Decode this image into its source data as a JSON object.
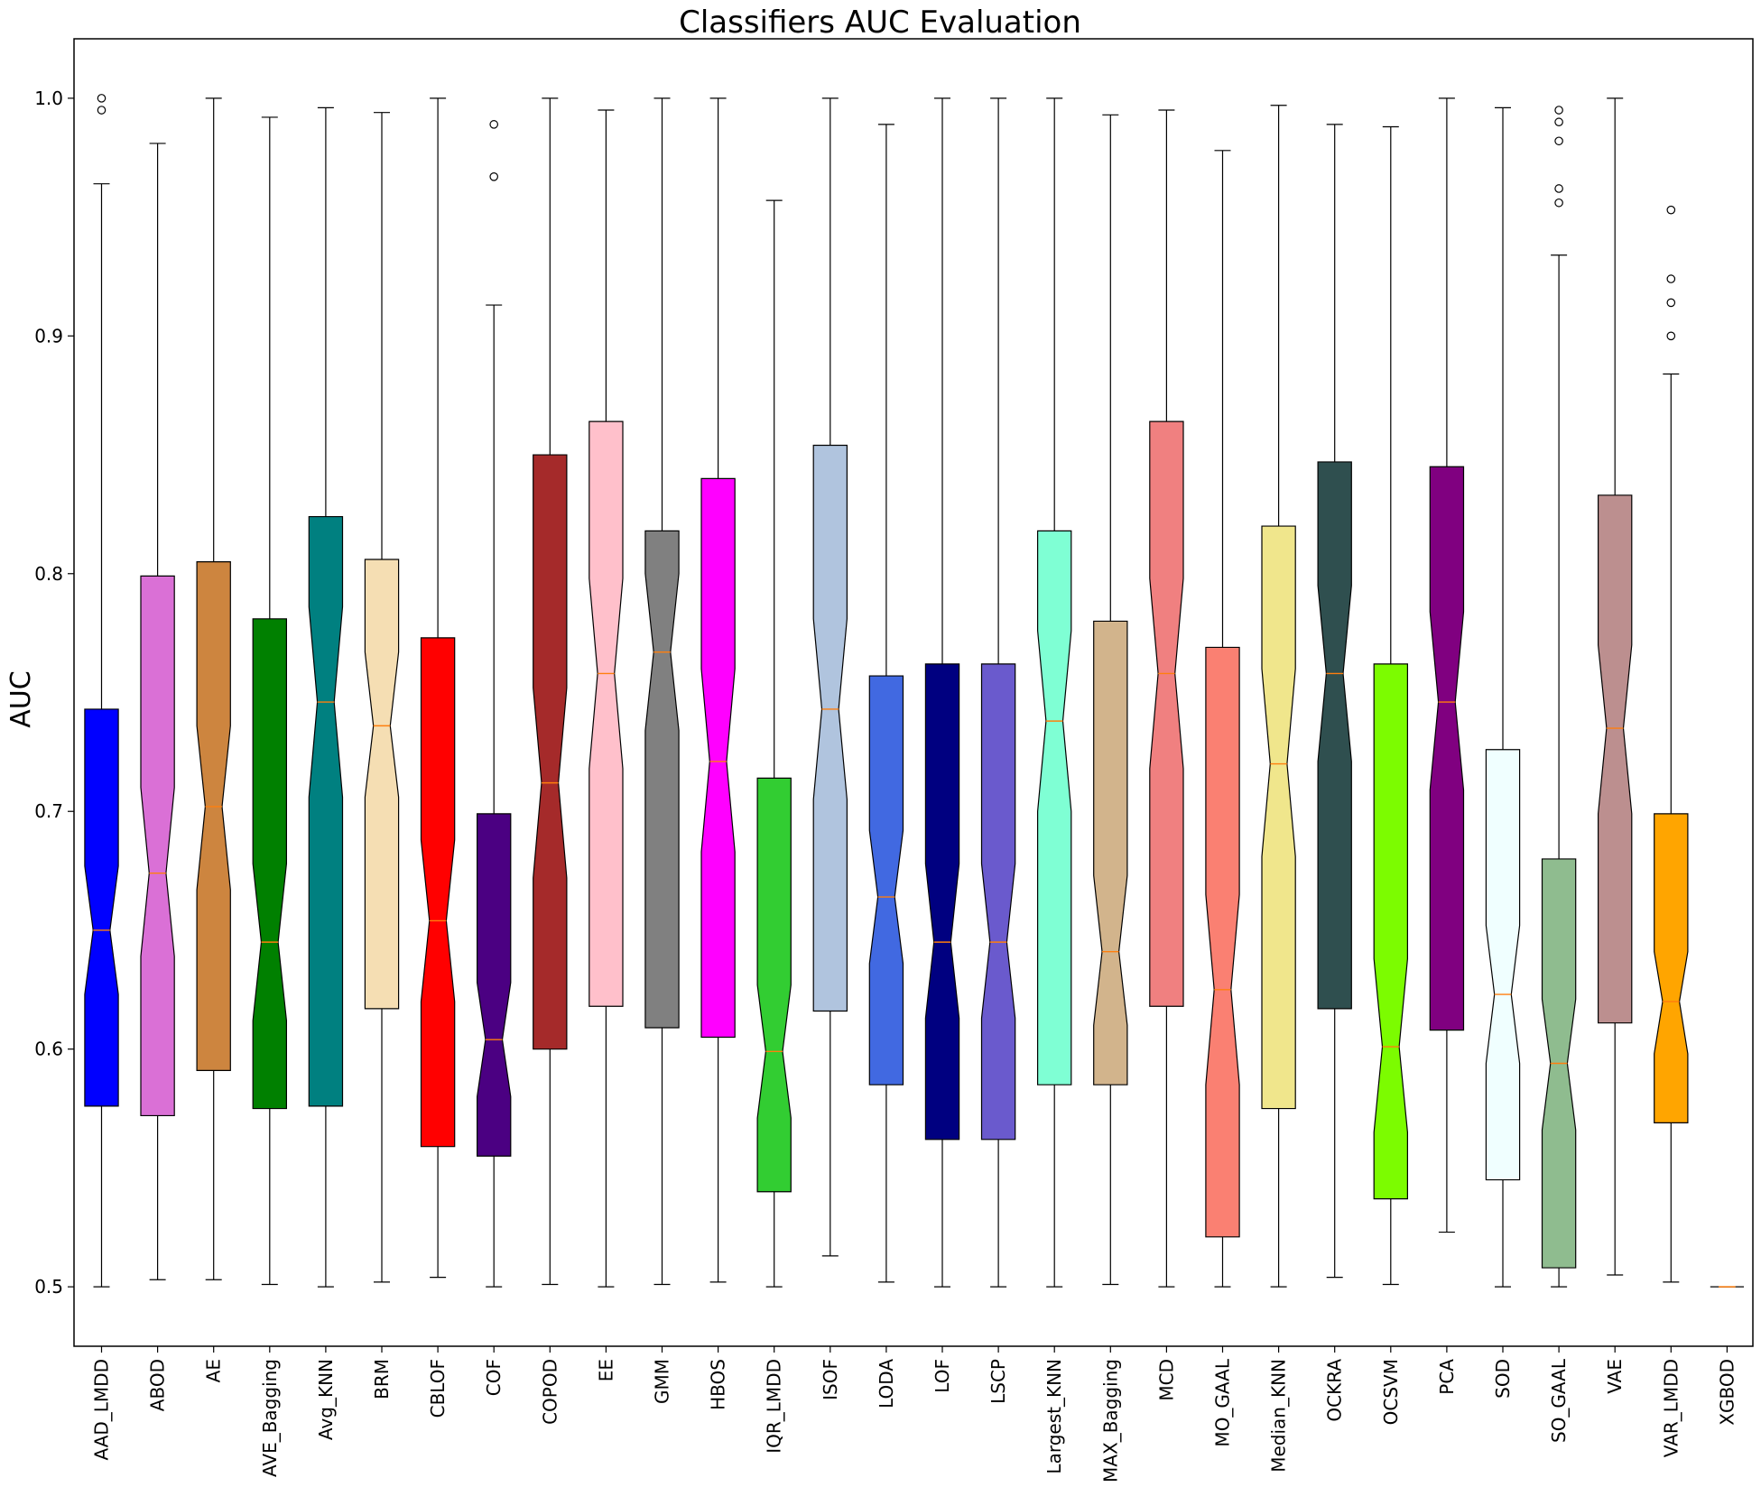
{
  "chart_data": {
    "type": "boxplot",
    "title": "Classifiers AUC Evaluation",
    "xlabel": "",
    "ylabel": "AUC",
    "ylim": [
      0.475,
      1.025
    ],
    "yticks": [
      0.5,
      0.6,
      0.7,
      0.8,
      0.9,
      1.0
    ],
    "ytick_labels": [
      "0.5",
      "0.6",
      "0.7",
      "0.8",
      "0.9",
      "1.0"
    ],
    "notched": true,
    "grid": false,
    "median_color": "#ff7f0e",
    "categories": [
      "AAD_LMDD",
      "ABOD",
      "AE",
      "AVE_Bagging",
      "Avg_KNN",
      "BRM",
      "CBLOF",
      "COF",
      "COPOD",
      "EE",
      "GMM",
      "HBOS",
      "IQR_LMDD",
      "ISOF",
      "LODA",
      "LOF",
      "LSCP",
      "Largest_KNN",
      "MAX_Bagging",
      "MCD",
      "MO_GAAL",
      "Median_KNN",
      "OCKRA",
      "OCSVM",
      "PCA",
      "SOD",
      "SO_GAAL",
      "VAE",
      "VAR_LMDD",
      "XGBOD"
    ],
    "boxes": [
      {
        "name": "AAD_LMDD",
        "color": "#0000ff",
        "whislo": 0.5,
        "q1": 0.576,
        "med": 0.65,
        "q3": 0.743,
        "whishi": 0.964,
        "notch_lo": 0.623,
        "notch_hi": 0.677,
        "fliers": [
          0.995,
          1.0
        ]
      },
      {
        "name": "ABOD",
        "color": "#da70d6",
        "whislo": 0.503,
        "q1": 0.572,
        "med": 0.674,
        "q3": 0.799,
        "whishi": 0.981,
        "notch_lo": 0.639,
        "notch_hi": 0.71,
        "fliers": []
      },
      {
        "name": "AE",
        "color": "#cd853f",
        "whislo": 0.503,
        "q1": 0.591,
        "med": 0.702,
        "q3": 0.805,
        "whishi": 1.0,
        "notch_lo": 0.667,
        "notch_hi": 0.736,
        "fliers": []
      },
      {
        "name": "AVE_Bagging",
        "color": "#008000",
        "whislo": 0.501,
        "q1": 0.575,
        "med": 0.645,
        "q3": 0.781,
        "whishi": 0.992,
        "notch_lo": 0.612,
        "notch_hi": 0.678,
        "fliers": []
      },
      {
        "name": "Avg_KNN",
        "color": "#008080",
        "whislo": 0.5,
        "q1": 0.576,
        "med": 0.746,
        "q3": 0.824,
        "whishi": 0.996,
        "notch_lo": 0.706,
        "notch_hi": 0.786,
        "fliers": []
      },
      {
        "name": "BRM",
        "color": "#f5deb3",
        "whislo": 0.502,
        "q1": 0.617,
        "med": 0.736,
        "q3": 0.806,
        "whishi": 0.994,
        "notch_lo": 0.706,
        "notch_hi": 0.767,
        "fliers": []
      },
      {
        "name": "CBLOF",
        "color": "#ff0000",
        "whislo": 0.504,
        "q1": 0.559,
        "med": 0.654,
        "q3": 0.773,
        "whishi": 1.0,
        "notch_lo": 0.62,
        "notch_hi": 0.688,
        "fliers": []
      },
      {
        "name": "COF",
        "color": "#4b0082",
        "whislo": 0.5,
        "q1": 0.555,
        "med": 0.604,
        "q3": 0.699,
        "whishi": 0.913,
        "notch_lo": 0.58,
        "notch_hi": 0.628,
        "fliers": [
          0.967,
          0.989
        ]
      },
      {
        "name": "COPOD",
        "color": "#a52a2a",
        "whislo": 0.501,
        "q1": 0.6,
        "med": 0.712,
        "q3": 0.85,
        "whishi": 1.0,
        "notch_lo": 0.672,
        "notch_hi": 0.752,
        "fliers": []
      },
      {
        "name": "EE",
        "color": "#ffc0cb",
        "whislo": 0.5,
        "q1": 0.618,
        "med": 0.758,
        "q3": 0.864,
        "whishi": 0.995,
        "notch_lo": 0.718,
        "notch_hi": 0.798,
        "fliers": []
      },
      {
        "name": "GMM",
        "color": "#808080",
        "whislo": 0.501,
        "q1": 0.609,
        "med": 0.767,
        "q3": 0.818,
        "whishi": 1.0,
        "notch_lo": 0.734,
        "notch_hi": 0.8,
        "fliers": []
      },
      {
        "name": "HBOS",
        "color": "#ff00ff",
        "whislo": 0.502,
        "q1": 0.605,
        "med": 0.721,
        "q3": 0.84,
        "whishi": 1.0,
        "notch_lo": 0.683,
        "notch_hi": 0.76,
        "fliers": []
      },
      {
        "name": "IQR_LMDD",
        "color": "#32cd32",
        "whislo": 0.5,
        "q1": 0.54,
        "med": 0.599,
        "q3": 0.714,
        "whishi": 0.957,
        "notch_lo": 0.571,
        "notch_hi": 0.627,
        "fliers": []
      },
      {
        "name": "ISOF",
        "color": "#b0c4de",
        "whislo": 0.513,
        "q1": 0.616,
        "med": 0.743,
        "q3": 0.854,
        "whishi": 1.0,
        "notch_lo": 0.705,
        "notch_hi": 0.781,
        "fliers": []
      },
      {
        "name": "LODA",
        "color": "#4169e1",
        "whislo": 0.502,
        "q1": 0.585,
        "med": 0.664,
        "q3": 0.757,
        "whishi": 0.989,
        "notch_lo": 0.636,
        "notch_hi": 0.692,
        "fliers": []
      },
      {
        "name": "LOF",
        "color": "#000080",
        "whislo": 0.5,
        "q1": 0.562,
        "med": 0.645,
        "q3": 0.762,
        "whishi": 1.0,
        "notch_lo": 0.613,
        "notch_hi": 0.678,
        "fliers": []
      },
      {
        "name": "LSCP",
        "color": "#6a5acd",
        "whislo": 0.5,
        "q1": 0.562,
        "med": 0.645,
        "q3": 0.762,
        "whishi": 1.0,
        "notch_lo": 0.613,
        "notch_hi": 0.678,
        "fliers": []
      },
      {
        "name": "Largest_KNN",
        "color": "#7fffd4",
        "whislo": 0.5,
        "q1": 0.585,
        "med": 0.738,
        "q3": 0.818,
        "whishi": 1.0,
        "notch_lo": 0.7,
        "notch_hi": 0.776,
        "fliers": []
      },
      {
        "name": "MAX_Bagging",
        "color": "#d2b48c",
        "whislo": 0.501,
        "q1": 0.585,
        "med": 0.641,
        "q3": 0.78,
        "whishi": 0.993,
        "notch_lo": 0.61,
        "notch_hi": 0.673,
        "fliers": []
      },
      {
        "name": "MCD",
        "color": "#f08080",
        "whislo": 0.5,
        "q1": 0.618,
        "med": 0.758,
        "q3": 0.864,
        "whishi": 0.995,
        "notch_lo": 0.718,
        "notch_hi": 0.798,
        "fliers": []
      },
      {
        "name": "MO_GAAL",
        "color": "#fa8072",
        "whislo": 0.5,
        "q1": 0.521,
        "med": 0.625,
        "q3": 0.769,
        "whishi": 0.978,
        "notch_lo": 0.585,
        "notch_hi": 0.665,
        "fliers": []
      },
      {
        "name": "Median_KNN",
        "color": "#f0e68c",
        "whislo": 0.5,
        "q1": 0.575,
        "med": 0.72,
        "q3": 0.82,
        "whishi": 0.997,
        "notch_lo": 0.681,
        "notch_hi": 0.76,
        "fliers": []
      },
      {
        "name": "OCKRA",
        "color": "#2f4f4f",
        "whislo": 0.504,
        "q1": 0.617,
        "med": 0.758,
        "q3": 0.847,
        "whishi": 0.989,
        "notch_lo": 0.721,
        "notch_hi": 0.795,
        "fliers": []
      },
      {
        "name": "OCSVM",
        "color": "#7cfc00",
        "whislo": 0.501,
        "q1": 0.537,
        "med": 0.601,
        "q3": 0.762,
        "whishi": 0.988,
        "notch_lo": 0.565,
        "notch_hi": 0.638,
        "fliers": []
      },
      {
        "name": "PCA",
        "color": "#800080",
        "whislo": 0.523,
        "q1": 0.608,
        "med": 0.746,
        "q3": 0.845,
        "whishi": 1.0,
        "notch_lo": 0.709,
        "notch_hi": 0.784,
        "fliers": []
      },
      {
        "name": "SOD",
        "color": "#f0ffff",
        "whislo": 0.5,
        "q1": 0.545,
        "med": 0.623,
        "q3": 0.726,
        "whishi": 0.996,
        "notch_lo": 0.594,
        "notch_hi": 0.652,
        "fliers": []
      },
      {
        "name": "SO_GAAL",
        "color": "#8fbc8f",
        "whislo": 0.5,
        "q1": 0.508,
        "med": 0.594,
        "q3": 0.68,
        "whishi": 0.934,
        "notch_lo": 0.566,
        "notch_hi": 0.621,
        "fliers": [
          0.956,
          0.962,
          0.982,
          0.99,
          0.995
        ]
      },
      {
        "name": "VAE",
        "color": "#bc8f8f",
        "whislo": 0.505,
        "q1": 0.611,
        "med": 0.735,
        "q3": 0.833,
        "whishi": 1.0,
        "notch_lo": 0.699,
        "notch_hi": 0.77,
        "fliers": []
      },
      {
        "name": "VAR_LMDD",
        "color": "#ffa500",
        "whislo": 0.502,
        "q1": 0.569,
        "med": 0.62,
        "q3": 0.699,
        "whishi": 0.884,
        "notch_lo": 0.598,
        "notch_hi": 0.641,
        "fliers": [
          0.9,
          0.914,
          0.924,
          0.953
        ]
      },
      {
        "name": "XGBOD",
        "color": "#ffa500",
        "whislo": 0.5,
        "q1": 0.5,
        "med": 0.5,
        "q3": 0.5,
        "whishi": 0.5,
        "notch_lo": 0.5,
        "notch_hi": 0.5,
        "fliers": []
      }
    ]
  }
}
